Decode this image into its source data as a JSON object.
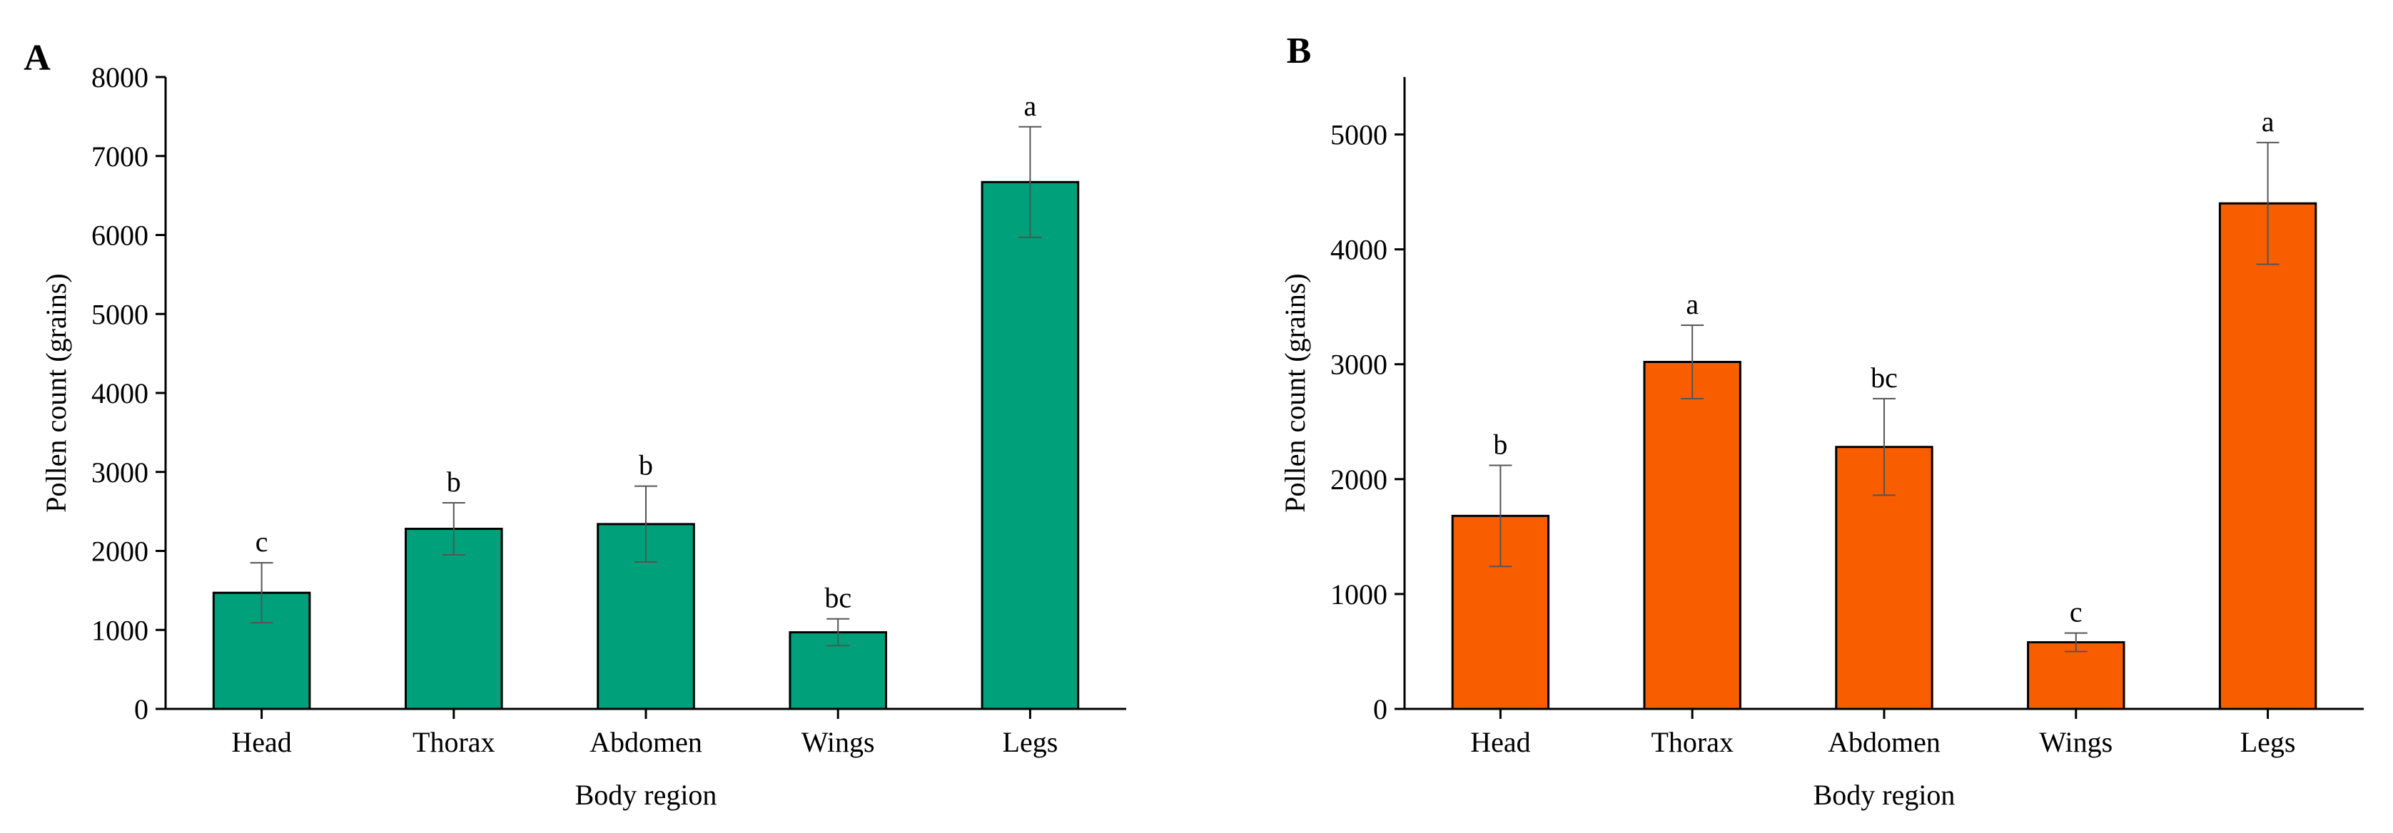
{
  "chart_data": [
    {
      "type": "bar",
      "panel_label": "A",
      "categories": [
        "Head",
        "Thorax",
        "Abdomen",
        "Wings",
        "Legs"
      ],
      "values": [
        1470,
        2280,
        2340,
        970,
        6670
      ],
      "errors": [
        380,
        330,
        480,
        170,
        700
      ],
      "significance_letters": [
        "c",
        "b",
        "b",
        "bc",
        "a"
      ],
      "xlabel": "Body region",
      "ylabel": "Pollen count (grains)",
      "ylim": [
        0,
        8000
      ],
      "yticks": [
        0,
        1000,
        2000,
        3000,
        4000,
        5000,
        6000,
        7000,
        8000
      ],
      "bar_color": "#00A07A",
      "grid": false,
      "legend": "none"
    },
    {
      "type": "bar",
      "panel_label": "B",
      "categories": [
        "Head",
        "Thorax",
        "Abdomen",
        "Wings",
        "Legs"
      ],
      "values": [
        1680,
        3020,
        2280,
        580,
        4400
      ],
      "errors": [
        440,
        320,
        420,
        80,
        530
      ],
      "significance_letters": [
        "b",
        "a",
        "bc",
        "c",
        "a"
      ],
      "xlabel": "Body region",
      "ylabel": "Pollen count (grains)",
      "ylim": [
        0,
        5500
      ],
      "yticks": [
        0,
        1000,
        2000,
        3000,
        4000,
        5000
      ],
      "bar_color": "#F85E00",
      "grid": false,
      "legend": "none"
    }
  ]
}
